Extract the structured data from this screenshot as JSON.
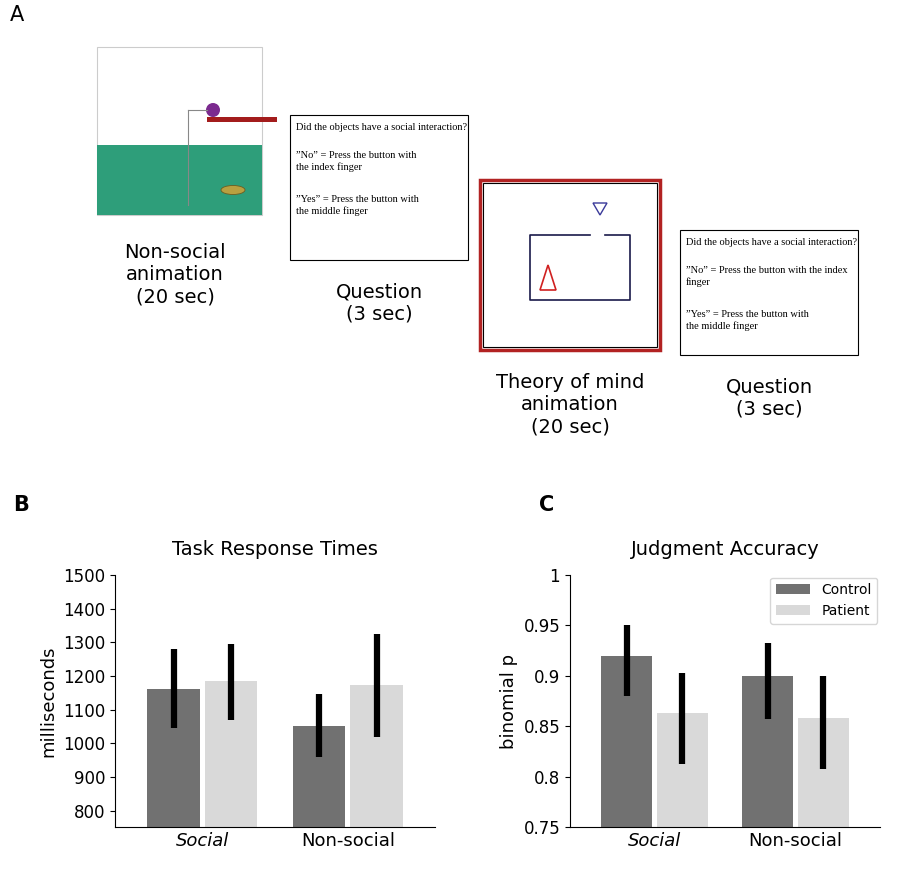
{
  "diagram": {
    "panel_label": "A",
    "nonsocial_caption": "Non-social\nanimation\n(20 sec)",
    "question1": {
      "paragraphs": [
        "Did the objects have a social interaction?",
        "”No” = Press the button with\nthe index finger",
        "”Yes” = Press the button with\nthe middle finger"
      ],
      "caption": "Question\n(3 sec)"
    },
    "tom_caption": "Theory of mind\nanimation\n(20 sec)",
    "question2": {
      "paragraphs": [
        "Did the objects have a social interaction?",
        "”No” = Press the button with the index\nfinger",
        "”Yes” = Press the button with\nthe middle finger"
      ],
      "caption": "Question\n(3 sec)"
    }
  },
  "chart_data": [
    {
      "type": "bar",
      "title": "Task Response Times",
      "y_label": "milliseconds",
      "annotations": [
        "B"
      ],
      "categories": [
        "Social",
        "Non-social"
      ],
      "series": [
        {
          "name": "Control",
          "color": "#717171",
          "values": [
            1162,
            1050
          ],
          "ci_low": [
            1045,
            958
          ],
          "ci_high": [
            1280,
            1145
          ]
        },
        {
          "name": "Patient",
          "color": "#d9d9d9",
          "values": [
            1185,
            1172
          ],
          "ci_low": [
            1070,
            1018
          ],
          "ci_high": [
            1295,
            1325
          ]
        }
      ],
      "ylim": [
        750,
        1500
      ],
      "yticks": [
        800,
        900,
        1000,
        1100,
        1200,
        1300,
        1400,
        1500
      ]
    },
    {
      "type": "bar",
      "title": "Judgment Accuracy",
      "y_label": "binomial p",
      "annotations": [
        "C"
      ],
      "categories": [
        "Social",
        "Non-social"
      ],
      "series": [
        {
          "name": "Control",
          "color": "#717171",
          "values": [
            0.92,
            0.9
          ],
          "ci_low": [
            0.88,
            0.857
          ],
          "ci_high": [
            0.95,
            0.933
          ]
        },
        {
          "name": "Patient",
          "color": "#d9d9d9",
          "values": [
            0.863,
            0.858
          ],
          "ci_low": [
            0.813,
            0.808
          ],
          "ci_high": [
            0.903,
            0.9
          ]
        }
      ],
      "ylim": [
        0.75,
        1
      ],
      "yticks": [
        0.75,
        0.8,
        0.85,
        0.9,
        0.95,
        1
      ],
      "legend": "upper right"
    }
  ]
}
